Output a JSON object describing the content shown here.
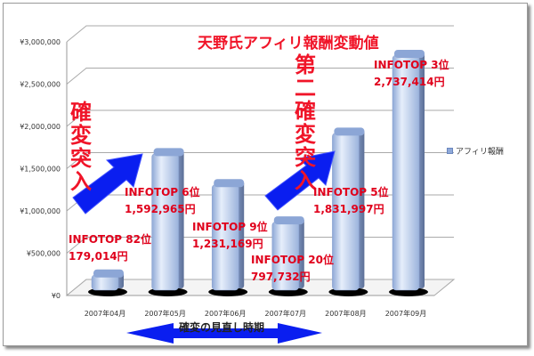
{
  "chart_data": {
    "type": "bar",
    "title": "天野氏アフィリ報酬変動値",
    "categories": [
      "2007年04月",
      "2007年05月",
      "2007年06月",
      "2007年07月",
      "2007年08月",
      "2007年09月"
    ],
    "series": [
      {
        "name": "アフィリ報酬",
        "values": [
          179014,
          1592965,
          1231169,
          797732,
          1831997,
          2737414
        ]
      }
    ],
    "ylim": [
      0,
      3000000
    ],
    "yticks": [
      "¥0",
      "¥500,000",
      "¥1,000,000",
      "¥1,500,000",
      "¥2,000,000",
      "¥2,500,000",
      "¥3,000,000"
    ],
    "legend": "right",
    "grid": true,
    "annotations": [
      {
        "rank": "INFOTOP  82位",
        "amount": "179,014円"
      },
      {
        "rank": "INFOTOP  6位",
        "amount": "1,592,965円"
      },
      {
        "rank": "INFOTOP  9位",
        "amount": "1,231,169円"
      },
      {
        "rank": "INFOTOP  20位",
        "amount": "797,732円"
      },
      {
        "rank": "INFOTOP  5位",
        "amount": "1,831,997円"
      },
      {
        "rank": "INFOTOP  3位",
        "amount": "2,737,414円"
      }
    ],
    "callouts": [
      "確変突入",
      "第二確変突入"
    ],
    "period_label": "確変の見直し時期"
  },
  "colors": {
    "bar": "#a9bfe6",
    "accent": "#f01428",
    "arrow": "#0a1ef0"
  }
}
